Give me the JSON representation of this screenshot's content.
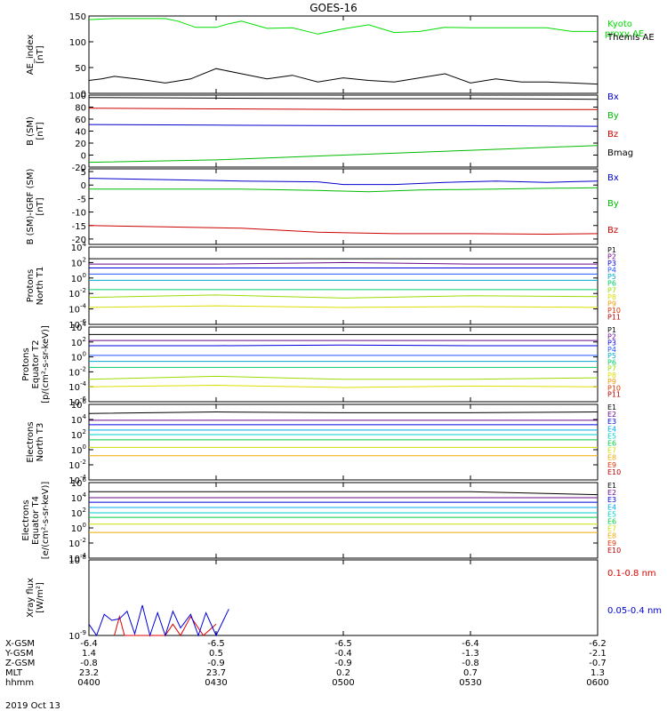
{
  "title": "GOES-16",
  "footer": {
    "rows": [
      {
        "label": "X-GSM",
        "values": [
          "-6.4",
          "-6.5",
          "-6.5",
          "-6.4",
          "-6.2"
        ]
      },
      {
        "label": "Y-GSM",
        "values": [
          "1.4",
          "0.5",
          "-0.4",
          "-1.3",
          "-2.1"
        ]
      },
      {
        "label": "Z-GSM",
        "values": [
          "-0.8",
          "-0.9",
          "-0.9",
          "-0.8",
          "-0.7"
        ]
      },
      {
        "label": "MLT",
        "values": [
          "23.2",
          "23.7",
          "0.2",
          "0.7",
          "1.3"
        ]
      },
      {
        "label": "hhmm",
        "values": [
          "0400",
          "0430",
          "0500",
          "0530",
          "0600"
        ]
      }
    ],
    "date": "2019 Oct 13"
  },
  "chart_data": [
    {
      "type": "line",
      "ylabel": [
        "AE_index",
        "[nT]"
      ],
      "ylim": [
        0,
        150
      ],
      "yticks": [
        "0",
        "50",
        "100",
        "150"
      ],
      "legend": [
        "Kyoto proxy AE",
        "Themis AE"
      ],
      "colors": [
        "#00dd00",
        "#000000"
      ],
      "series": [
        {
          "name": "Kyoto proxy AE",
          "x": [
            0,
            0.1,
            0.2,
            0.3,
            0.35,
            0.42,
            0.5,
            0.55,
            0.6,
            0.7,
            0.8,
            0.9,
            1.0,
            1.1,
            1.2,
            1.3,
            1.4,
            1.5,
            1.6,
            1.7,
            1.8,
            1.9,
            2.0
          ],
          "y": [
            143,
            145,
            145,
            145,
            140,
            128,
            128,
            135,
            140,
            126,
            127,
            115,
            125,
            133,
            118,
            120,
            128,
            127,
            127,
            127,
            127,
            120,
            120
          ]
        },
        {
          "name": "Themis AE",
          "x": [
            0,
            0.05,
            0.1,
            0.2,
            0.3,
            0.35,
            0.4,
            0.42,
            0.5,
            0.6,
            0.7,
            0.8,
            0.9,
            1.0,
            1.1,
            1.2,
            1.3,
            1.4,
            1.5,
            1.6,
            1.7,
            1.8,
            1.9,
            2.0
          ],
          "y": [
            25,
            28,
            33,
            27,
            20,
            24,
            28,
            32,
            48,
            38,
            28,
            35,
            22,
            30,
            25,
            22,
            30,
            38,
            20,
            28,
            22,
            22,
            20,
            18
          ]
        }
      ]
    },
    {
      "type": "line",
      "ylabel": [
        "B (SM)",
        "[nT]"
      ],
      "ylim": [
        -20,
        100
      ],
      "yticks": [
        "-20",
        "0",
        "20",
        "40",
        "60",
        "80",
        "100"
      ],
      "legend": [
        "Bx",
        "By",
        "Bz",
        "Bmag"
      ],
      "colors": [
        "#0000cc",
        "#00bb00",
        "#cc0000",
        "#000000"
      ],
      "series": [
        {
          "name": "Bx",
          "x": [
            0,
            0.5,
            1.0,
            1.5,
            2.0
          ],
          "y": [
            51,
            50,
            49,
            49,
            48
          ]
        },
        {
          "name": "By",
          "x": [
            0,
            0.5,
            1.0,
            1.5,
            2.0
          ],
          "y": [
            -12,
            -8,
            0,
            8,
            16
          ]
        },
        {
          "name": "Bz",
          "x": [
            0,
            0.5,
            1.0,
            1.5,
            2.0
          ],
          "y": [
            78,
            77,
            76,
            76,
            76
          ]
        },
        {
          "name": "Bmag",
          "x": [
            0,
            0.5,
            1.0,
            1.5,
            2.0
          ],
          "y": [
            96,
            95,
            94,
            94,
            93
          ]
        }
      ]
    },
    {
      "type": "line",
      "ylabel": [
        "B (SM)-IGRF (SM)",
        "[nT]"
      ],
      "ylim": [
        -22,
        6
      ],
      "yticks": [
        "-20",
        "-15",
        "-10",
        "-5",
        "0",
        "5"
      ],
      "legend": [
        "Bx",
        "By",
        "Bz"
      ],
      "colors": [
        "#0000cc",
        "#00bb00",
        "#cc0000"
      ],
      "series": [
        {
          "name": "Bx",
          "x": [
            0,
            0.3,
            0.6,
            0.9,
            1.0,
            1.2,
            1.4,
            1.6,
            1.8,
            2.0
          ],
          "y": [
            2.5,
            2.0,
            1.5,
            1.2,
            0.2,
            0.2,
            1.0,
            1.5,
            1.0,
            1.5
          ]
        },
        {
          "name": "By",
          "x": [
            0,
            0.3,
            0.6,
            0.9,
            1.1,
            1.3,
            1.6,
            1.8,
            2.0
          ],
          "y": [
            -1.5,
            -1.5,
            -1.5,
            -2.0,
            -2.5,
            -1.8,
            -1.5,
            -1.2,
            -1.0
          ]
        },
        {
          "name": "Bz",
          "x": [
            0,
            0.3,
            0.6,
            0.9,
            1.2,
            1.5,
            1.8,
            2.0
          ],
          "y": [
            -15,
            -15.5,
            -16,
            -17.5,
            -18.0,
            -18.0,
            -18.2,
            -18.0
          ]
        }
      ]
    },
    {
      "type": "line",
      "log": true,
      "ylabel": [
        "Protons",
        "North T1"
      ],
      "yticks": [
        "10^-6",
        "10^-4",
        "10^-2",
        "10^0",
        "10^2",
        "10^4"
      ],
      "ylim_exp": [
        -6,
        4
      ],
      "legend": [
        "P1",
        "P2",
        "P3",
        "P4",
        "P5",
        "P6",
        "P7",
        "P8",
        "P9",
        "P10",
        "P11"
      ],
      "colors": [
        "#000000",
        "#6a0a8a",
        "#0000dd",
        "#2255ff",
        "#00aacc",
        "#00cc66",
        "#99dd00",
        "#dddd00",
        "#ee9900",
        "#dd3300",
        "#bb0000"
      ],
      "series": [
        {
          "name": "P1",
          "y": [
            2.5,
            2.5,
            2.5,
            2.5,
            2.5
          ]
        },
        {
          "name": "P2",
          "y": [
            1.8,
            1.8,
            2.0,
            1.8,
            1.8
          ]
        },
        {
          "name": "P3",
          "y": [
            1.3,
            1.3,
            1.3,
            1.3,
            1.3
          ]
        },
        {
          "name": "P4",
          "y": [
            0.5,
            0.5,
            0.5,
            0.5,
            0.5
          ]
        },
        {
          "name": "P5",
          "y": [
            -0.3,
            -0.3,
            -0.3,
            -0.3,
            -0.3
          ]
        },
        {
          "name": "P6",
          "y": [
            -1.5,
            -1.5,
            -1.5,
            -1.5,
            -1.5
          ]
        },
        {
          "name": "P7",
          "y": [
            -2.5,
            -2.2,
            -2.6,
            -2.3,
            -2.4
          ]
        },
        {
          "name": "P8",
          "y": [
            -3.8,
            -3.6,
            -3.8,
            -3.7,
            -3.8
          ]
        }
      ]
    },
    {
      "type": "line",
      "log": true,
      "ylabel": [
        "Protons",
        "Equator T2",
        "[p/(cm²-s-sr-keV)]"
      ],
      "yticks": [
        "10^-6",
        "10^-4",
        "10^-2",
        "10^0",
        "10^2",
        "10^4"
      ],
      "ylim_exp": [
        -6,
        4
      ],
      "legend": [
        "P1",
        "P2",
        "P3",
        "P4",
        "P5",
        "P6",
        "P7",
        "P8",
        "P9",
        "P10",
        "P11"
      ],
      "colors": [
        "#000000",
        "#6a0a8a",
        "#0000dd",
        "#2255ff",
        "#00aacc",
        "#00cc66",
        "#99dd00",
        "#dddd00",
        "#ee9900",
        "#dd3300",
        "#bb0000"
      ],
      "series": [
        {
          "name": "P1",
          "y": [
            3.0,
            3.0,
            3.0,
            3.0,
            3.0
          ]
        },
        {
          "name": "P2",
          "y": [
            2.2,
            2.2,
            2.2,
            2.2,
            2.2
          ]
        },
        {
          "name": "P3",
          "y": [
            1.5,
            1.5,
            1.6,
            1.5,
            1.5
          ]
        },
        {
          "name": "P4",
          "y": [
            0.2,
            0.2,
            0.2,
            0.2,
            0.2
          ]
        },
        {
          "name": "P5",
          "y": [
            -0.6,
            -0.6,
            -0.6,
            -0.6,
            -0.6
          ]
        },
        {
          "name": "P6",
          "y": [
            -1.4,
            -1.4,
            -1.4,
            -1.4,
            -1.4
          ]
        },
        {
          "name": "P7",
          "y": [
            -3.0,
            -2.6,
            -3.0,
            -3.0,
            -2.8
          ]
        },
        {
          "name": "P8",
          "y": [
            -4.0,
            -3.8,
            -4.1,
            -3.9,
            -4.0
          ]
        }
      ]
    },
    {
      "type": "line",
      "log": true,
      "ylabel": [
        "Electrons",
        "North T3"
      ],
      "yticks": [
        "10^-4",
        "10^-2",
        "10^0",
        "10^2",
        "10^4",
        "10^6"
      ],
      "ylim_exp": [
        -4,
        6
      ],
      "legend": [
        "E1",
        "E2",
        "E3",
        "E4",
        "E5",
        "E6",
        "E7",
        "E8",
        "E9",
        "E10"
      ],
      "colors": [
        "#000000",
        "#6a0a8a",
        "#0000dd",
        "#00aaee",
        "#00cccc",
        "#00cc44",
        "#ccdd00",
        "#eeaa00",
        "#dd3300",
        "#bb0000"
      ],
      "series": [
        {
          "name": "E1",
          "y": [
            4.8,
            5.0,
            4.9,
            4.9,
            5.0
          ]
        },
        {
          "name": "E2",
          "y": [
            3.9,
            3.9,
            3.9,
            3.9,
            3.9
          ]
        },
        {
          "name": "E3",
          "y": [
            3.3,
            3.3,
            3.3,
            3.3,
            3.3
          ]
        },
        {
          "name": "E4",
          "y": [
            2.6,
            2.6,
            2.6,
            2.6,
            2.6
          ]
        },
        {
          "name": "E5",
          "y": [
            2.0,
            2.0,
            2.0,
            2.0,
            2.0
          ]
        },
        {
          "name": "E6",
          "y": [
            1.3,
            1.3,
            1.3,
            1.3,
            1.3
          ]
        },
        {
          "name": "E7",
          "y": [
            0.3,
            0.3,
            0.3,
            0.3,
            0.3
          ]
        },
        {
          "name": "E8",
          "y": [
            -0.8,
            -0.8,
            -0.8,
            -0.8,
            -0.8
          ]
        }
      ]
    },
    {
      "type": "line",
      "log": true,
      "ylabel": [
        "Electrons",
        "Equator T4",
        "[e/(cm²-s-sr-keV)]"
      ],
      "yticks": [
        "10^-4",
        "10^-2",
        "10^0",
        "10^2",
        "10^4",
        "10^6"
      ],
      "ylim_exp": [
        -4,
        6
      ],
      "legend": [
        "E1",
        "E2",
        "E3",
        "E4",
        "E5",
        "E6",
        "E7",
        "E8",
        "E9",
        "E10"
      ],
      "colors": [
        "#000000",
        "#6a0a8a",
        "#0000dd",
        "#00aaee",
        "#00cccc",
        "#00cc44",
        "#ccdd00",
        "#eeaa00",
        "#dd3300",
        "#bb0000"
      ],
      "series": [
        {
          "name": "E1",
          "y": [
            4.8,
            4.8,
            4.8,
            4.8,
            4.4
          ]
        },
        {
          "name": "E2",
          "y": [
            4.0,
            4.0,
            4.0,
            4.0,
            4.0
          ]
        },
        {
          "name": "E3",
          "y": [
            3.4,
            3.4,
            3.4,
            3.4,
            3.4
          ]
        },
        {
          "name": "E4",
          "y": [
            2.7,
            2.7,
            2.7,
            2.7,
            2.7
          ]
        },
        {
          "name": "E5",
          "y": [
            2.0,
            2.0,
            2.0,
            2.0,
            2.0
          ]
        },
        {
          "name": "E6",
          "y": [
            1.4,
            1.4,
            1.4,
            1.4,
            1.4
          ]
        },
        {
          "name": "E7",
          "y": [
            0.5,
            0.5,
            0.5,
            0.5,
            0.5
          ]
        },
        {
          "name": "E8",
          "y": [
            -0.6,
            -0.6,
            -0.6,
            -0.6,
            -0.6
          ]
        }
      ]
    },
    {
      "type": "line",
      "log": true,
      "ylabel": [
        "Xray flux",
        "[W/m²]"
      ],
      "yticks": [
        "10^-9",
        "10^-8"
      ],
      "ylim_exp": [
        -9,
        -8
      ],
      "legend": [
        "0.1-0.8 nm",
        "0.05-0.4 nm"
      ],
      "colors": [
        "#dd0000",
        "#0000dd"
      ],
      "series": [
        {
          "name": "0.1-0.8 nm",
          "x": [
            0.1,
            0.12,
            0.14,
            0.16,
            0.3,
            0.33,
            0.36,
            0.4,
            0.45,
            0.5
          ],
          "y": [
            -9.0,
            -8.75,
            -9.0,
            -9.0,
            -9.0,
            -8.85,
            -9.0,
            -8.75,
            -9.0,
            -8.85
          ]
        },
        {
          "name": "0.05-0.4 nm",
          "x": [
            0.0,
            0.03,
            0.06,
            0.09,
            0.12,
            0.15,
            0.18,
            0.21,
            0.24,
            0.27,
            0.3,
            0.33,
            0.36,
            0.4,
            0.43,
            0.46,
            0.5,
            0.55
          ],
          "y": [
            -8.85,
            -9.0,
            -8.72,
            -8.8,
            -8.78,
            -8.68,
            -8.98,
            -8.6,
            -9.0,
            -8.7,
            -9.0,
            -8.68,
            -8.9,
            -8.72,
            -9.0,
            -8.7,
            -9.0,
            -8.65
          ]
        }
      ]
    }
  ]
}
